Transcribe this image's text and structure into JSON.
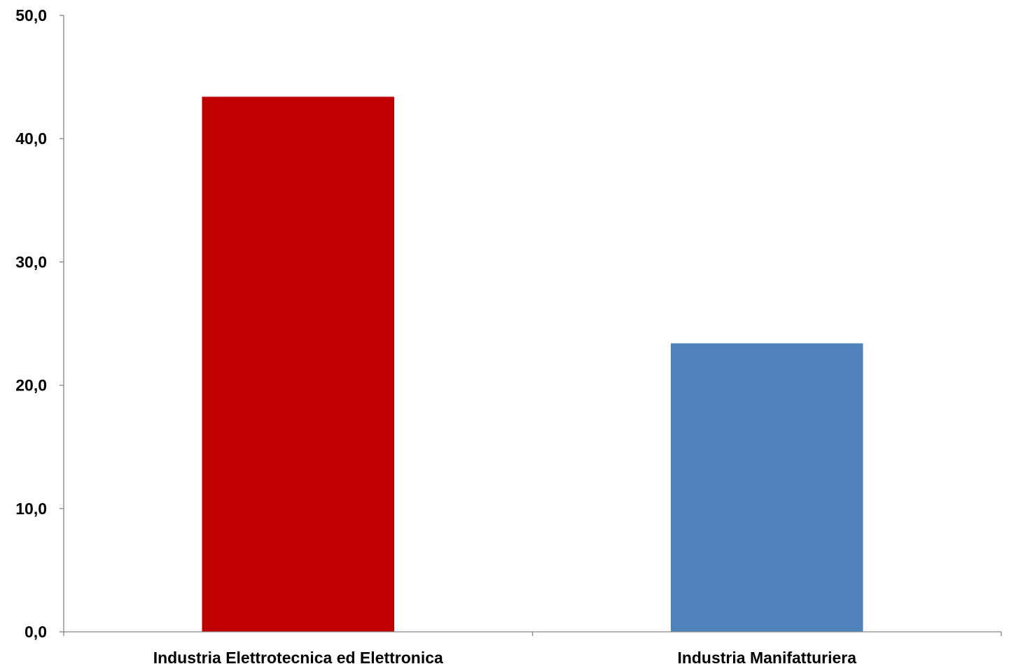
{
  "chart_data": {
    "type": "bar",
    "categories": [
      "Industria Elettrotecnica ed Elettronica",
      "Industria Manifatturiera"
    ],
    "values": [
      43.4,
      23.4
    ],
    "bar_colors": [
      "#C00000",
      "#4F81BD"
    ],
    "ylim": [
      0,
      50
    ],
    "yticks": [
      0,
      10,
      20,
      30,
      40,
      50
    ],
    "ytick_labels": [
      "0,0",
      "10,0",
      "20,0",
      "30,0",
      "40,0",
      "50,0"
    ],
    "grid": false,
    "legend": "none",
    "title": "",
    "xlabel": "",
    "ylabel": ""
  }
}
